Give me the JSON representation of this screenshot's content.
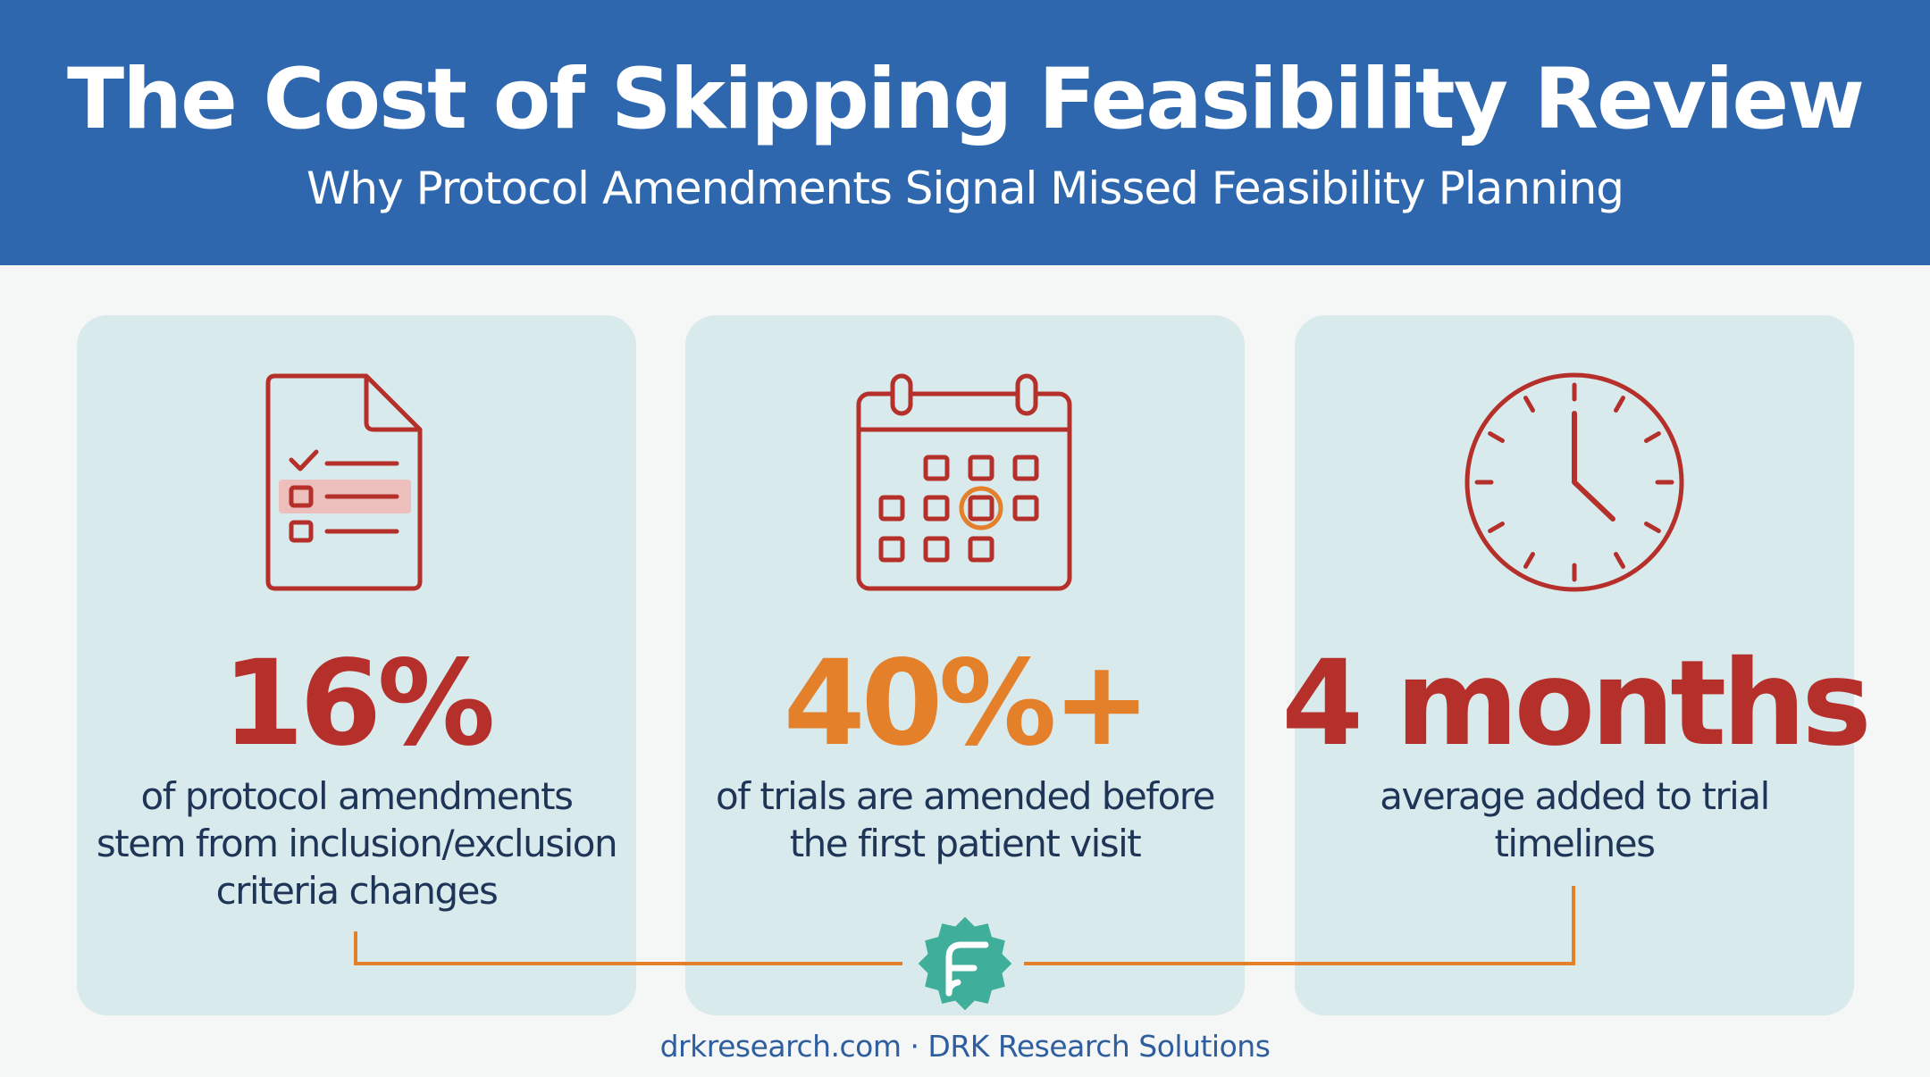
{
  "header": {
    "title": "The Cost of Skipping Feasibility Review",
    "subtitle": "Why Protocol Amendments Signal Missed Feasibility Planning"
  },
  "cards": [
    {
      "icon": "checklist-document-icon",
      "stat": "16%",
      "stat_color": "#b5302a",
      "description": "of protocol amendments stem from inclusion/exclusion criteria changes"
    },
    {
      "icon": "calendar-icon",
      "stat": "40%+",
      "stat_color": "#e4802a",
      "description": "of trials are amended before the first patient visit"
    },
    {
      "icon": "clock-icon",
      "stat": "4 months",
      "stat_color": "#b5302a",
      "description": "average added to trial timelines"
    }
  ],
  "logo": {
    "icon": "f-badge-logo-icon",
    "color": "#3fae9a"
  },
  "footer": {
    "text": "drkresearch.com · DRK Research Solutions"
  },
  "colors": {
    "header_bg": "#2e67ad",
    "card_bg": "#d9eaec",
    "icon_red": "#b5302a",
    "accent_orange": "#e4802a",
    "text_navy": "#1f3558"
  }
}
